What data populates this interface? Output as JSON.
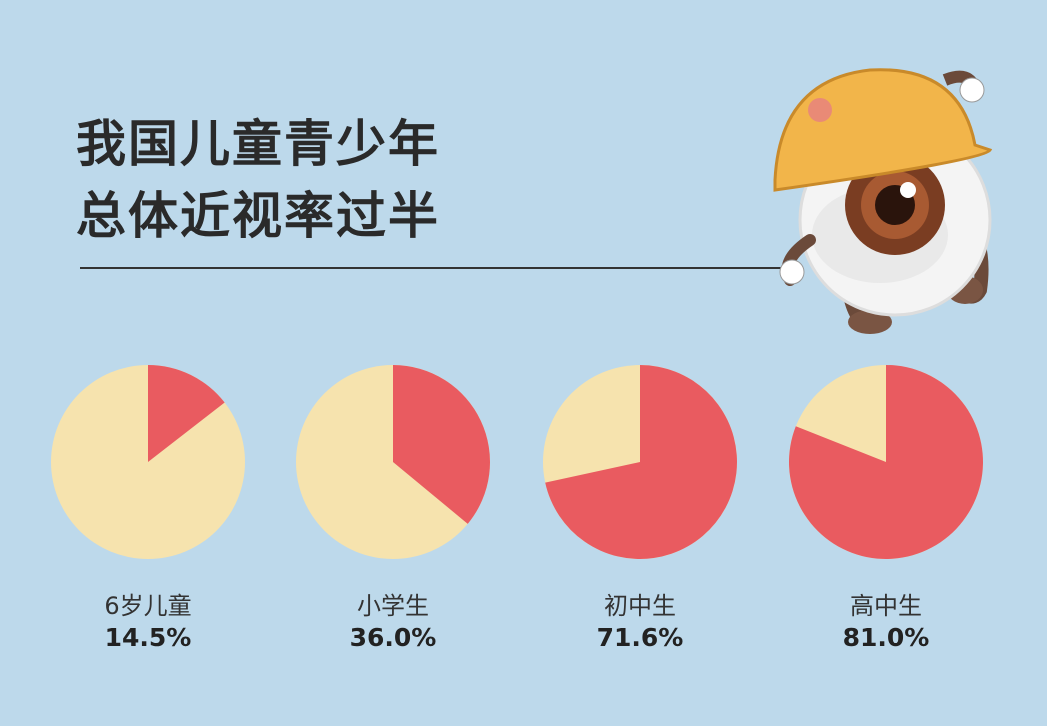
{
  "title": {
    "line1": "我国儿童青少年",
    "line2": "总体近视率过半"
  },
  "colors": {
    "background": "#bdd9eb",
    "myopia": "#e95b60",
    "rest": "#f6e3ae"
  },
  "chart_data": {
    "type": "pie",
    "title": "我国儿童青少年总体近视率过半",
    "unit": "%",
    "categories": [
      "6岁儿童",
      "小学生",
      "初中生",
      "高中生"
    ],
    "values": [
      14.5,
      36.0,
      71.6,
      81.0
    ],
    "value_labels": [
      "14.5%",
      "36.0%",
      "71.6%",
      "81.0%"
    ]
  }
}
